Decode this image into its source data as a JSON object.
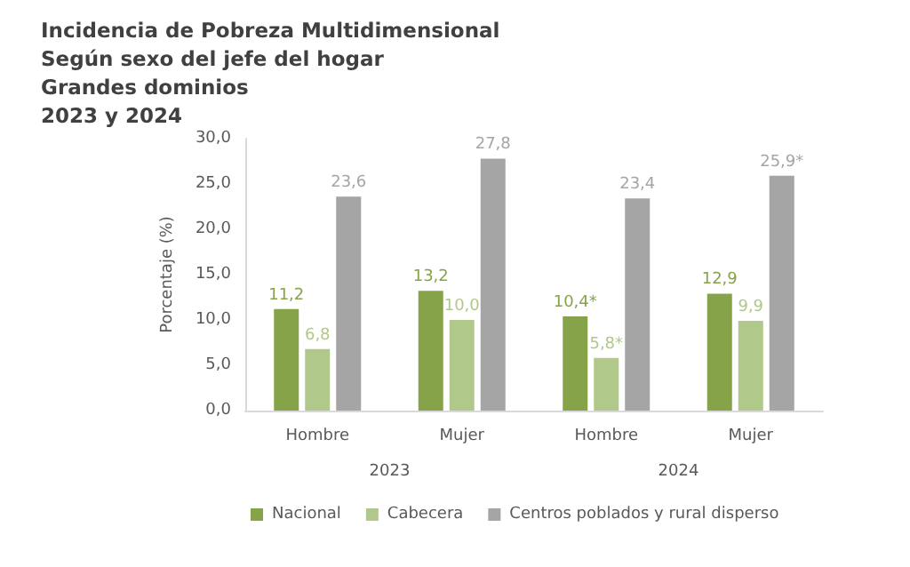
{
  "chart_data": {
    "type": "bar",
    "title": "Incidencia de Pobreza Multidimensional\nSegún sexo del jefe del hogar\nGrandes dominios\n2023 y 2024",
    "ylabel": "Porcentaje (%)",
    "categories": [
      "Hombre",
      "Mujer",
      "Hombre",
      "Mujer"
    ],
    "annotations": [
      "2023",
      "2024"
    ],
    "series": [
      {
        "name": "Nacional",
        "color": "#86a34a",
        "values": [
          11.2,
          13.2,
          10.4,
          12.9
        ],
        "value_labels": [
          "11,2",
          "13,2",
          "10,4*",
          "12,9"
        ]
      },
      {
        "name": "Cabecera",
        "color": "#b0c98b",
        "values": [
          6.8,
          10.0,
          5.8,
          9.9
        ],
        "value_labels": [
          "6,8",
          "10,0",
          "5,8*",
          "9,9"
        ]
      },
      {
        "name": "Centros poblados y rural disperso",
        "color": "#a5a5a5",
        "values": [
          23.6,
          27.8,
          23.4,
          25.9
        ],
        "value_labels": [
          "23,6",
          "27,8",
          "23,4",
          "25,9*"
        ]
      }
    ],
    "ylim": [
      0,
      30
    ],
    "yticks": [
      {
        "value": 0,
        "label": "0,0"
      },
      {
        "value": 5,
        "label": "5,0"
      },
      {
        "value": 10,
        "label": "10,0"
      },
      {
        "value": 15,
        "label": "15,0"
      },
      {
        "value": 20,
        "label": "20,0"
      },
      {
        "value": 25,
        "label": "25,0"
      },
      {
        "value": 30,
        "label": "30,0"
      }
    ],
    "grid": false,
    "legend": "bottom"
  }
}
